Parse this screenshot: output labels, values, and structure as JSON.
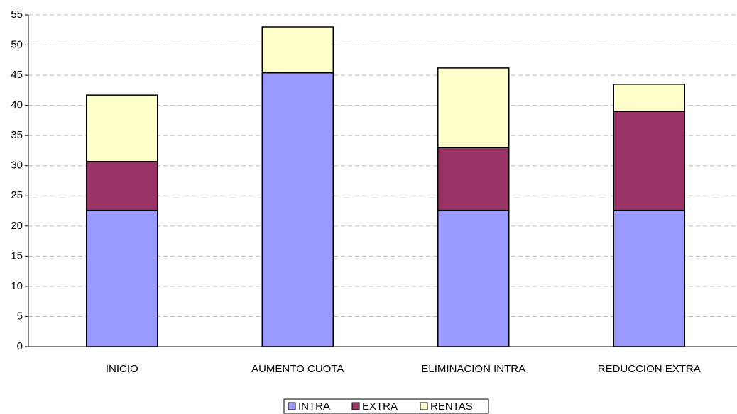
{
  "chart_data": {
    "type": "stacked_bar",
    "categories": [
      "INICIO",
      "AUMENTO CUOTA",
      "ELIMINACION INTRA",
      "REDUCCION EXTRA"
    ],
    "series": [
      {
        "name": "INTRA",
        "color": "#9999ff",
        "values": [
          22.6,
          45.4,
          22.6,
          22.6
        ]
      },
      {
        "name": "EXTRA",
        "color": "#993366",
        "values": [
          8.1,
          0,
          10.4,
          16.4
        ]
      },
      {
        "name": "RENTAS",
        "color": "#ffffcc",
        "values": [
          11.0,
          7.6,
          13.2,
          4.5
        ]
      }
    ],
    "ylim": [
      0,
      55
    ],
    "yticks": [
      0,
      5,
      10,
      15,
      20,
      25,
      30,
      35,
      40,
      45,
      50,
      55
    ],
    "grid": true,
    "legend": "bottom"
  }
}
